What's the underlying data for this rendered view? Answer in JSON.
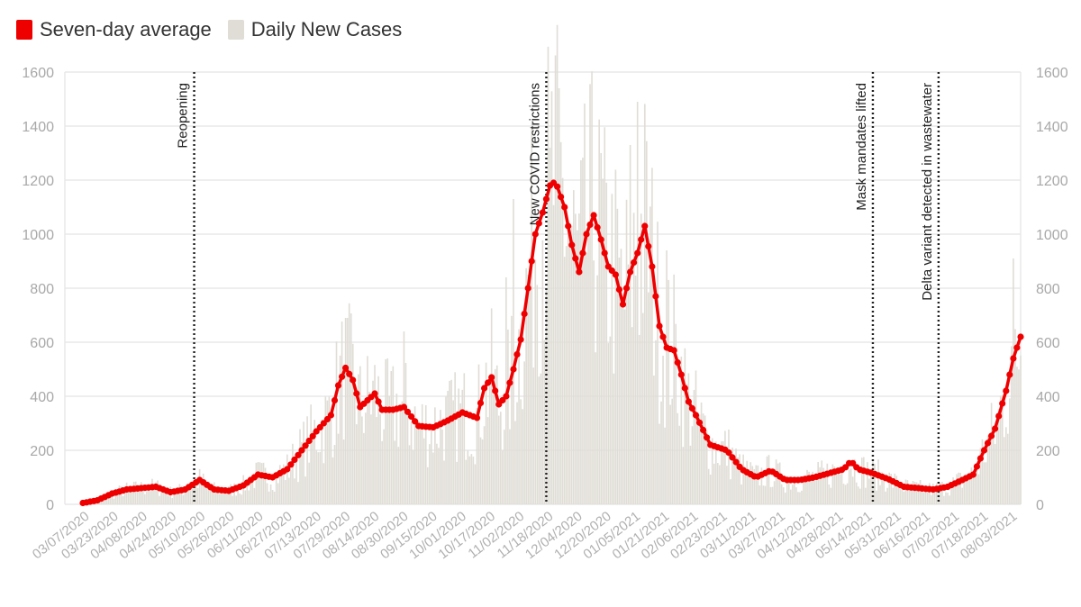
{
  "legend": {
    "avg_label": "Seven-day average",
    "daily_label": "Daily New Cases"
  },
  "colors": {
    "avg": "#ee0000",
    "daily": "#e0ddd6",
    "grid": "#e8e8e8",
    "annotation": "#222222"
  },
  "chart_data": {
    "type": "bar",
    "title": "",
    "xlabel": "",
    "ylabel": "",
    "ylim": [
      0,
      1600
    ],
    "yticks": [
      0,
      200,
      400,
      600,
      800,
      1000,
      1200,
      1400,
      1600
    ],
    "grid": true,
    "legend_position": "top-left",
    "x_range": [
      "03/07/2020",
      "08/03/2021"
    ],
    "x_tick_labels": [
      "03/07/2020",
      "03/23/2020",
      "04/08/2020",
      "04/24/2020",
      "05/10/2020",
      "05/26/2020",
      "06/11/2020",
      "06/27/2020",
      "07/13/2020",
      "07/29/2020",
      "08/14/2020",
      "08/30/2020",
      "09/15/2020",
      "10/01/2020",
      "10/17/2020",
      "11/02/2020",
      "11/18/2020",
      "12/04/2020",
      "12/20/2020",
      "01/05/2021",
      "01/21/2021",
      "02/06/2021",
      "02/23/2021",
      "03/11/2021",
      "03/27/2021",
      "04/12/2021",
      "04/28/2021",
      "05/14/2021",
      "05/31/2021",
      "06/16/2021",
      "07/02/2021",
      "07/18/2021",
      "08/03/2021"
    ],
    "series": [
      {
        "name": "Seven-day average",
        "type": "line",
        "points": [
          [
            "03/07/2020",
            5
          ],
          [
            "03/15/2020",
            15
          ],
          [
            "03/23/2020",
            40
          ],
          [
            "03/31/2020",
            55
          ],
          [
            "04/08/2020",
            60
          ],
          [
            "04/16/2020",
            65
          ],
          [
            "04/24/2020",
            45
          ],
          [
            "05/02/2020",
            55
          ],
          [
            "05/10/2020",
            90
          ],
          [
            "05/18/2020",
            55
          ],
          [
            "05/26/2020",
            50
          ],
          [
            "06/03/2020",
            70
          ],
          [
            "06/11/2020",
            110
          ],
          [
            "06/19/2020",
            100
          ],
          [
            "06/27/2020",
            130
          ],
          [
            "07/05/2020",
            200
          ],
          [
            "07/13/2020",
            270
          ],
          [
            "07/21/2020",
            330
          ],
          [
            "07/25/2020",
            440
          ],
          [
            "07/29/2020",
            505
          ],
          [
            "08/02/2020",
            460
          ],
          [
            "08/06/2020",
            360
          ],
          [
            "08/14/2020",
            410
          ],
          [
            "08/18/2020",
            350
          ],
          [
            "08/24/2020",
            350
          ],
          [
            "08/30/2020",
            360
          ],
          [
            "09/07/2020",
            290
          ],
          [
            "09/15/2020",
            285
          ],
          [
            "09/23/2020",
            310
          ],
          [
            "10/01/2020",
            340
          ],
          [
            "10/09/2020",
            320
          ],
          [
            "10/13/2020",
            430
          ],
          [
            "10/17/2020",
            470
          ],
          [
            "10/21/2020",
            370
          ],
          [
            "10/25/2020",
            400
          ],
          [
            "10/29/2020",
            500
          ],
          [
            "11/02/2020",
            610
          ],
          [
            "11/06/2020",
            800
          ],
          [
            "11/10/2020",
            1000
          ],
          [
            "11/14/2020",
            1080
          ],
          [
            "11/18/2020",
            1180
          ],
          [
            "11/21/2020",
            1195
          ],
          [
            "11/26/2020",
            1100
          ],
          [
            "11/30/2020",
            960
          ],
          [
            "12/04/2020",
            860
          ],
          [
            "12/08/2020",
            1000
          ],
          [
            "12/12/2020",
            1070
          ],
          [
            "12/16/2020",
            980
          ],
          [
            "12/20/2020",
            880
          ],
          [
            "12/24/2020",
            850
          ],
          [
            "12/28/2020",
            740
          ],
          [
            "01/01/2021",
            860
          ],
          [
            "01/05/2021",
            930
          ],
          [
            "01/09/2021",
            1030
          ],
          [
            "01/13/2021",
            880
          ],
          [
            "01/17/2021",
            660
          ],
          [
            "01/21/2021",
            580
          ],
          [
            "01/25/2021",
            570
          ],
          [
            "01/29/2021",
            480
          ],
          [
            "02/02/2021",
            380
          ],
          [
            "02/06/2021",
            330
          ],
          [
            "02/14/2021",
            220
          ],
          [
            "02/23/2021",
            200
          ],
          [
            "03/03/2021",
            130
          ],
          [
            "03/11/2021",
            100
          ],
          [
            "03/19/2021",
            125
          ],
          [
            "03/27/2021",
            90
          ],
          [
            "04/04/2021",
            90
          ],
          [
            "04/12/2021",
            100
          ],
          [
            "04/20/2021",
            115
          ],
          [
            "04/28/2021",
            130
          ],
          [
            "05/02/2021",
            160
          ],
          [
            "05/06/2021",
            130
          ],
          [
            "05/14/2021",
            115
          ],
          [
            "05/22/2021",
            95
          ],
          [
            "05/31/2021",
            65
          ],
          [
            "06/08/2021",
            60
          ],
          [
            "06/16/2021",
            55
          ],
          [
            "06/24/2021",
            65
          ],
          [
            "07/02/2021",
            90
          ],
          [
            "07/08/2021",
            110
          ],
          [
            "07/14/2021",
            200
          ],
          [
            "07/20/2021",
            280
          ],
          [
            "07/26/2021",
            420
          ],
          [
            "07/30/2021",
            540
          ],
          [
            "08/03/2021",
            620
          ]
        ]
      },
      {
        "name": "Daily New Cases",
        "type": "bar",
        "frequency": "daily",
        "peaks": [
          [
            "07/29/2020",
            690
          ],
          [
            "08/30/2020",
            640
          ],
          [
            "10/25/2020",
            840
          ],
          [
            "10/29/2020",
            1130
          ],
          [
            "11/18/2020",
            1320
          ],
          [
            "12/16/2020",
            1300
          ],
          [
            "01/01/2021",
            1330
          ],
          [
            "01/05/2021",
            1490
          ],
          [
            "01/21/2021",
            940
          ],
          [
            "07/30/2021",
            910
          ]
        ]
      }
    ],
    "annotations": [
      {
        "date": "05/07/2020",
        "label": "Reopening"
      },
      {
        "date": "11/16/2020",
        "label": "New COVID restrictions"
      },
      {
        "date": "05/14/2021",
        "label": "Mask mandates lifted"
      },
      {
        "date": "06/19/2021",
        "label": "Delta variant detected in wastewater"
      }
    ]
  }
}
